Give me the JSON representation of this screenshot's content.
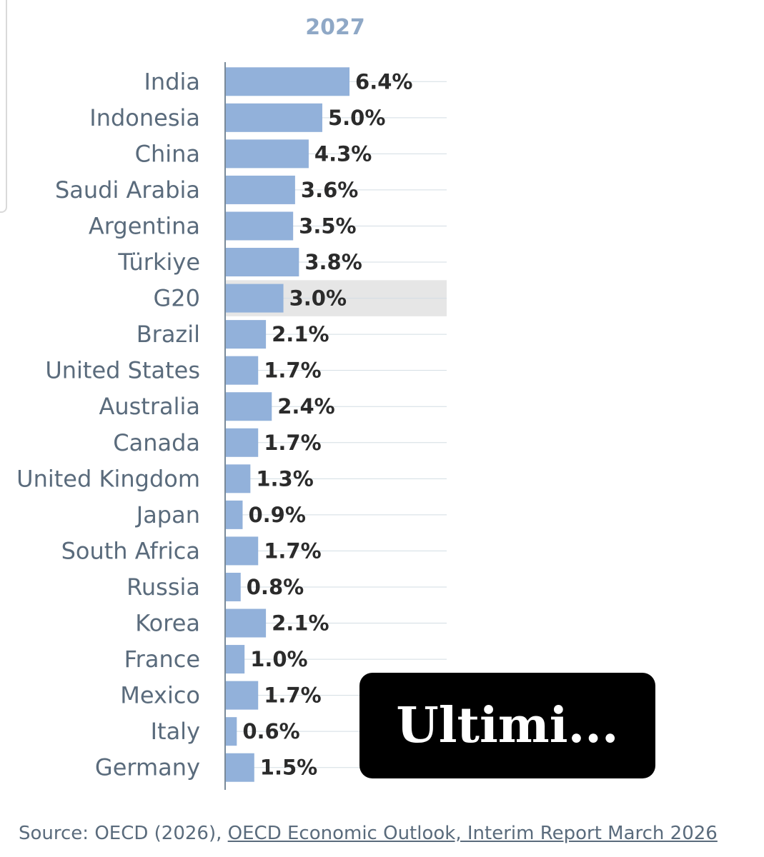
{
  "chart_data": {
    "type": "bar",
    "orientation": "horizontal",
    "title": "2027",
    "categories": [
      "India",
      "Indonesia",
      "China",
      "Saudi Arabia",
      "Argentina",
      "Türkiye",
      "G20",
      "Brazil",
      "United States",
      "Australia",
      "Canada",
      "United Kingdom",
      "Japan",
      "South Africa",
      "Russia",
      "Korea",
      "France",
      "Mexico",
      "Italy",
      "Germany"
    ],
    "values": [
      6.4,
      5.0,
      4.3,
      3.6,
      3.5,
      3.8,
      3.0,
      2.1,
      1.7,
      2.4,
      1.7,
      1.3,
      0.9,
      1.7,
      0.8,
      2.1,
      1.0,
      1.7,
      0.6,
      1.5
    ],
    "value_labels": [
      "6.4%",
      "5.0%",
      "4.3%",
      "3.6%",
      "3.5%",
      "3.8%",
      "3.0%",
      "2.1%",
      "1.7%",
      "2.4%",
      "1.7%",
      "1.3%",
      "0.9%",
      "1.7%",
      "0.8%",
      "2.1%",
      "1.0%",
      "1.7%",
      "0.6%",
      "1.5%"
    ],
    "highlight_category": "G20",
    "xlim": [
      0,
      11.4
    ],
    "grid": true,
    "bar_color": "#92b1da",
    "highlight_color": "#e6e6e6"
  },
  "overlay": {
    "label": "Ultimi..."
  },
  "source": {
    "prefix": "Source: OECD (2026), ",
    "link_text": "OECD Economic Outlook, Interim Report March 2026"
  }
}
